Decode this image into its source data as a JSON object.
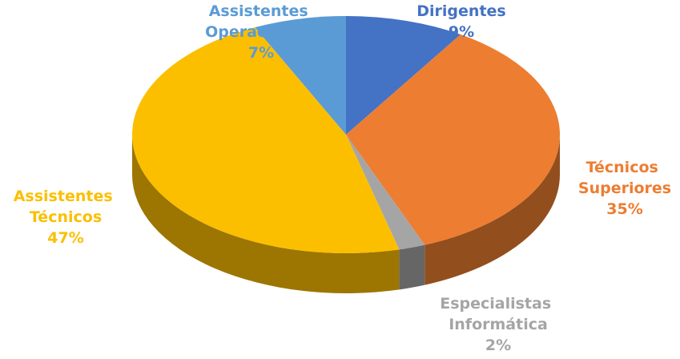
{
  "chart_data": {
    "type": "pie3d",
    "categories": [
      "Dirigentes",
      "Técnicos Superiores",
      "Especialistas Informática",
      "Assistentes Técnicos",
      "Assistentes Operacionais"
    ],
    "values": [
      9,
      35,
      2,
      47,
      7
    ],
    "value_labels": [
      "9%",
      "35%",
      "2%",
      "47%",
      "7%"
    ],
    "colors": [
      "#4472c4",
      "#ed7d31",
      "#a5a5a5",
      "#fbbf00",
      "#5b9bd5"
    ]
  }
}
